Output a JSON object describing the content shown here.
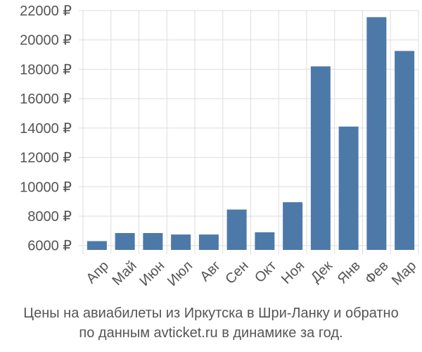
{
  "chart_data": {
    "type": "bar",
    "categories": [
      "Апр",
      "Май",
      "Июн",
      "Июл",
      "Авг",
      "Сен",
      "Окт",
      "Ноя",
      "Дек",
      "Янв",
      "Фев",
      "Мар"
    ],
    "values": [
      6300,
      6850,
      6850,
      6750,
      6750,
      8450,
      6900,
      8950,
      18200,
      14100,
      21550,
      19250
    ],
    "ylim": [
      5700,
      22000
    ],
    "yticks": [
      6000,
      8000,
      10000,
      12000,
      14000,
      16000,
      18000,
      20000,
      22000
    ],
    "ytick_labels": [
      "6000 ₽",
      "8000 ₽",
      "10000 ₽",
      "12000 ₽",
      "14000 ₽",
      "16000 ₽",
      "18000 ₽",
      "20000 ₽",
      "22000 ₽"
    ],
    "grid": true,
    "bar_color": "#4d79a8",
    "title": "",
    "xlabel": "",
    "ylabel": ""
  },
  "caption": {
    "line1": "Цены на авиабилеты из Иркутска в Шри-Ланку и обратно",
    "line2": "по данным avticket.ru в динамике за год."
  }
}
